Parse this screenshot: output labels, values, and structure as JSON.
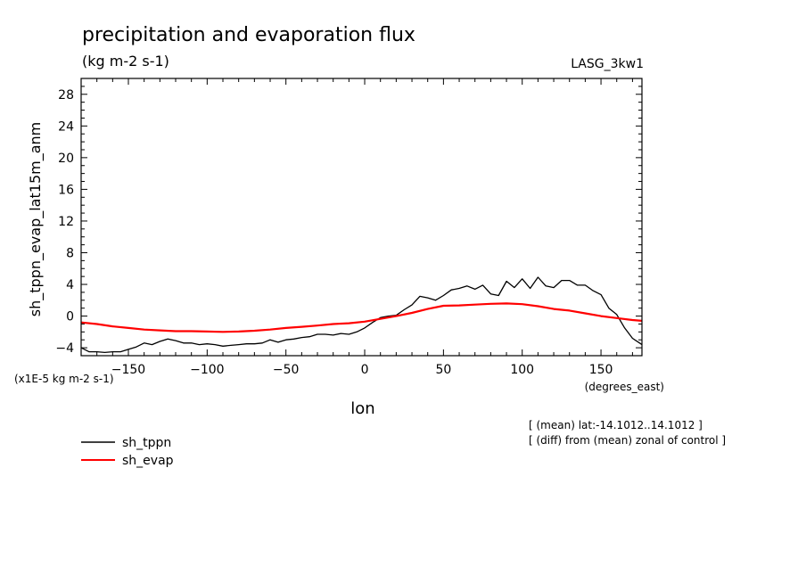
{
  "chart_data": {
    "type": "line",
    "title": "precipitation and evaporation flux",
    "units_label": "(kg m-2 s-1)",
    "model_label": "LASG_3kw1",
    "ylabel": "sh_tppn_evap_lat15m_anm",
    "y_scale_note": "(x1E-5 kg m-2 s-1)",
    "xlabel": "lon",
    "x_units": "(degrees_east)",
    "xlim": [
      -180,
      176
    ],
    "ylim": [
      -5,
      30
    ],
    "x_ticks": [
      -150,
      -100,
      -50,
      0,
      50,
      100,
      150
    ],
    "y_ticks": [
      -4,
      0,
      4,
      8,
      12,
      16,
      20,
      24,
      28
    ],
    "annotations": [
      "[ (mean) lat:-14.1012..14.1012 ]",
      "[ (diff) from (mean) zonal of control ]"
    ],
    "series": [
      {
        "name": "sh_tppn",
        "color": "#000000",
        "x": [
          -180,
          -175,
          -170,
          -165,
          -160,
          -155,
          -150,
          -145,
          -140,
          -135,
          -130,
          -125,
          -120,
          -115,
          -110,
          -105,
          -100,
          -95,
          -90,
          -85,
          -80,
          -75,
          -70,
          -65,
          -60,
          -55,
          -50,
          -45,
          -40,
          -35,
          -30,
          -25,
          -20,
          -15,
          -10,
          -5,
          0,
          5,
          10,
          15,
          20,
          25,
          30,
          35,
          40,
          45,
          50,
          55,
          60,
          65,
          70,
          75,
          80,
          85,
          90,
          95,
          100,
          105,
          110,
          115,
          120,
          125,
          130,
          135,
          140,
          145,
          150,
          155,
          160,
          165,
          170,
          176
        ],
        "values": [
          -4.0,
          -4.5,
          -4.5,
          -4.6,
          -4.5,
          -4.5,
          -4.2,
          -3.9,
          -3.4,
          -3.6,
          -3.2,
          -2.9,
          -3.1,
          -3.4,
          -3.4,
          -3.6,
          -3.5,
          -3.6,
          -3.8,
          -3.7,
          -3.6,
          -3.5,
          -3.5,
          -3.4,
          -3.0,
          -3.3,
          -3.0,
          -2.9,
          -2.7,
          -2.6,
          -2.3,
          -2.3,
          -2.4,
          -2.2,
          -2.3,
          -2.0,
          -1.5,
          -0.8,
          -0.2,
          0.0,
          0.1,
          0.8,
          1.4,
          2.5,
          2.3,
          2.0,
          2.6,
          3.3,
          3.5,
          3.8,
          3.4,
          3.9,
          2.8,
          2.6,
          4.4,
          3.6,
          4.7,
          3.5,
          4.9,
          3.8,
          3.6,
          4.5,
          4.5,
          3.9,
          3.9,
          3.2,
          2.7,
          1.0,
          0.2,
          -1.5,
          -2.8,
          -3.6
        ]
      },
      {
        "name": "sh_evap",
        "color": "#ff0000",
        "x": [
          -180,
          -170,
          -160,
          -150,
          -140,
          -130,
          -120,
          -110,
          -100,
          -90,
          -80,
          -70,
          -60,
          -50,
          -40,
          -30,
          -20,
          -10,
          0,
          10,
          20,
          30,
          40,
          50,
          60,
          70,
          80,
          90,
          100,
          110,
          120,
          130,
          140,
          150,
          160,
          170,
          176
        ],
        "values": [
          -0.8,
          -1.0,
          -1.3,
          -1.5,
          -1.7,
          -1.8,
          -1.9,
          -1.9,
          -1.95,
          -2.0,
          -1.95,
          -1.85,
          -1.7,
          -1.5,
          -1.35,
          -1.2,
          -1.0,
          -0.9,
          -0.7,
          -0.35,
          0.0,
          0.4,
          0.9,
          1.3,
          1.35,
          1.45,
          1.55,
          1.6,
          1.5,
          1.25,
          0.9,
          0.7,
          0.35,
          0.0,
          -0.25,
          -0.5,
          -0.6
        ]
      }
    ]
  }
}
